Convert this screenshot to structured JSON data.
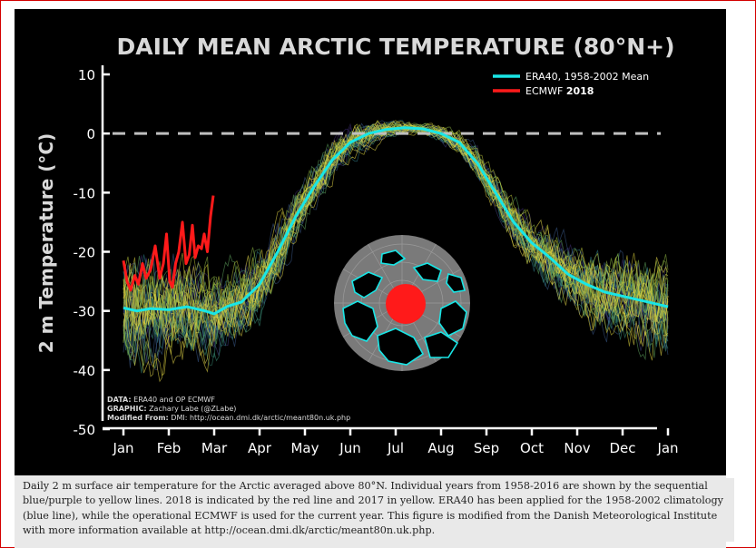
{
  "chart_data": {
    "type": "line",
    "title": "DAILY MEAN ARCTIC TEMPERATURE (80°N+)",
    "ylabel": "2 m Temperature (°C)",
    "xlabel": "",
    "ylim": [
      -50,
      10
    ],
    "yticks": [
      10,
      0,
      -10,
      -20,
      -30,
      -40,
      -50
    ],
    "xticks": [
      "Jan",
      "Feb",
      "Mar",
      "Apr",
      "May",
      "Jun",
      "Jul",
      "Aug",
      "Sep",
      "Oct",
      "Nov",
      "Dec",
      "Jan"
    ],
    "reference_line": 0,
    "legend_position": "top-right",
    "legend": [
      {
        "label_plain": "ERA40, 1958-2002 Mean",
        "color": "#19e6e6"
      },
      {
        "label_plain": "ECMWF ",
        "label_bold": "2018",
        "color": "#ff1a1a"
      }
    ],
    "series": [
      {
        "name": "ERA40, 1958-2002 Mean",
        "color": "#19e6e6",
        "x": [
          0,
          0.3,
          0.6,
          1.0,
          1.4,
          1.8,
          2.0,
          2.3,
          2.6,
          3.0,
          3.4,
          3.8,
          4.2,
          4.6,
          5.0,
          5.4,
          5.8,
          6.2,
          6.6,
          7.0,
          7.4,
          7.8,
          8.2,
          8.6,
          9.0,
          9.4,
          9.8,
          10.2,
          10.6,
          11.0,
          11.5,
          12.0
        ],
        "values": [
          -29.5,
          -30,
          -29.6,
          -29.8,
          -29.3,
          -30,
          -30.5,
          -29.2,
          -28.5,
          -25.5,
          -20,
          -14,
          -9,
          -4.5,
          -1.5,
          0,
          0.7,
          1.0,
          0.8,
          0,
          -1.5,
          -5,
          -10,
          -15,
          -18.5,
          -21,
          -23.8,
          -25.5,
          -26.8,
          -27.5,
          -28.4,
          -29.3
        ]
      },
      {
        "name": "ECMWF 2018",
        "color": "#ff1a1a",
        "x": [
          0,
          0.08,
          0.16,
          0.25,
          0.33,
          0.42,
          0.5,
          0.6,
          0.7,
          0.8,
          0.88,
          0.95,
          1.02,
          1.08,
          1.15,
          1.22,
          1.3,
          1.38,
          1.45,
          1.52,
          1.58,
          1.65,
          1.72,
          1.78,
          1.85,
          1.92,
          1.98
        ],
        "values": [
          -21.5,
          -25,
          -26.5,
          -24,
          -25.5,
          -22,
          -24.5,
          -23,
          -19,
          -24.5,
          -22,
          -17,
          -25,
          -26,
          -22,
          -20,
          -15,
          -22,
          -20.5,
          -15.5,
          -21,
          -19,
          -19.5,
          -17,
          -20,
          -14,
          -10.5
        ]
      }
    ],
    "annotations": {
      "data_label": "DATA:",
      "data_text": " ERA40 and OP ECMWF",
      "graphic_label": "GRAPHIC:",
      "graphic_text": " Zachary Labe (@ZLabe)",
      "modified_label": "Modified From:",
      "modified_text": " DMI: http://ocean.dmi.dk/arctic/meant80n.uk.php"
    }
  },
  "caption": "Daily 2 m surface air temperature for the Arctic averaged above 80°N. Individual years from 1958-2016 are shown by the sequential blue/purple to yellow lines. 2018 is indicated by the red line and 2017 in yellow. ERA40 has been applied for the 1958-2002 climatology (blue line), while the operational ECMWF is used for the current year. This figure is modified from the Danish Meteorological Institute with more information available at http://ocean.dmi.dk/arctic/meant80n.uk.php.",
  "colors": {
    "background": "#000000",
    "axis": "#ffffff",
    "title": "#d9d9d9",
    "reference_line": "#bfbfbf",
    "inset_disc": "#7a7a7a",
    "inset_land": "#19e6e6",
    "inset_marker": "#ff1a1a"
  }
}
